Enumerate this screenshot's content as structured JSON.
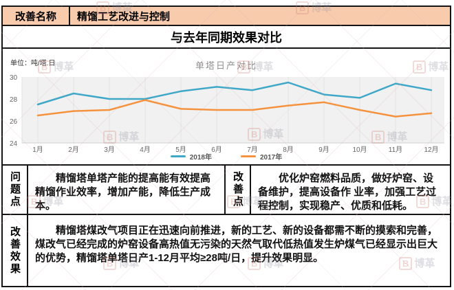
{
  "header": {
    "label": "改善名称",
    "title": "精馏工艺改进与控制"
  },
  "subtitle": "与去年同期效果对比",
  "chart": {
    "unit_label": "单位：吨/塔.日"
  },
  "chart_data": {
    "type": "line",
    "title": "单塔日产对比",
    "unit": "吨/塔.日",
    "categories": [
      "1月",
      "2月",
      "3月",
      "4月",
      "5月",
      "6月",
      "7月",
      "8月",
      "9月",
      "10月",
      "11月",
      "12月"
    ],
    "series": [
      {
        "name": "2018年",
        "color": "#3FA7C7",
        "values": [
          27.5,
          28.5,
          28.0,
          28.0,
          28.7,
          29.1,
          28.8,
          29.5,
          28.4,
          28.1,
          29.4,
          28.8
        ]
      },
      {
        "name": "2017年",
        "color": "#F5923E",
        "values": [
          26.5,
          26.9,
          27.0,
          27.9,
          27.1,
          27.0,
          27.0,
          27.4,
          27.7,
          27.0,
          26.4,
          26.7
        ]
      }
    ],
    "ylim": [
      24,
      30
    ],
    "yticks": [
      24,
      26,
      28,
      30
    ],
    "legend_position": "bottom",
    "grid": "vertical-only"
  },
  "sections": {
    "problem": {
      "label": "问题点",
      "text": "精馏塔单塔产能的提高能有效提高精馏作业效率，增加产能，降低生产成本。"
    },
    "improvement": {
      "label": "改善点",
      "text": "优化炉窑燃料品质，做好炉窑、设备维护，提高设备作 业率，加强工艺过程控制，实现稳产、优质和低耗。"
    },
    "effect": {
      "label": "改善效果",
      "text": "精馏塔煤改气项目正在迅速向前推进，新的工艺、新的设备都需不断的摸索和完善，煤改气已经完成的炉窑设备高热值无污染的天然气取代低热值发生炉煤气已经显示出巨大的优势，精馏塔单塔日产1-12月平均≥28吨/日，提升效果明显。"
    }
  },
  "watermark": {
    "letter": "B",
    "text": "博革"
  },
  "colors": {
    "header_bg": "#F8CBAD",
    "border": "#141414",
    "plot_bg": "#F1F1F1",
    "gridline": "#E2E2E2",
    "axis_text": "#666666",
    "series_2018": "#3FA7C7",
    "series_2017": "#F5923E"
  }
}
